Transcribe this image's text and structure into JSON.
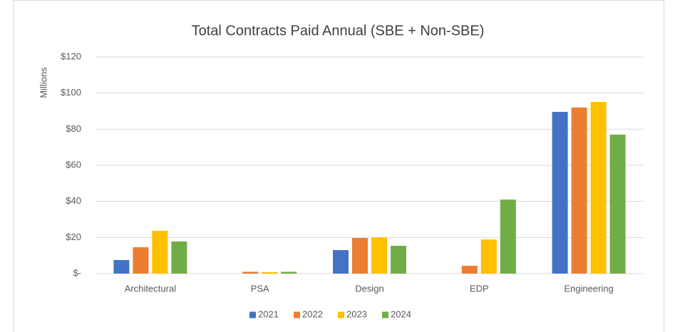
{
  "chart_data": {
    "type": "bar",
    "title": "Total  Contracts Paid Annual (SBE + Non-SBE)",
    "y_axis_label": "Millions",
    "categories": [
      "Architectural",
      "PSA",
      "Design",
      "EDP",
      "Engineering"
    ],
    "series": [
      {
        "name": "2021",
        "color": "#4472c4",
        "values": [
          7.5,
          0,
          13,
          0,
          89.6
        ]
      },
      {
        "name": "2022",
        "color": "#ed7d31",
        "values": [
          14.6,
          1,
          19.7,
          4.3,
          92
        ]
      },
      {
        "name": "2023",
        "color": "#ffc000",
        "values": [
          23.7,
          0.8,
          20.1,
          18.9,
          95.1
        ]
      },
      {
        "name": "2024",
        "color": "#70ad47",
        "values": [
          17.8,
          1,
          15.4,
          41,
          77
        ]
      }
    ],
    "ylim": [
      0,
      120
    ],
    "yticks": [
      {
        "value": 0,
        "label": "$-"
      },
      {
        "value": 20,
        "label": "$20"
      },
      {
        "value": 40,
        "label": "$40"
      },
      {
        "value": 60,
        "label": "$60"
      },
      {
        "value": 80,
        "label": "$80"
      },
      {
        "value": 100,
        "label": "$100"
      },
      {
        "value": 120,
        "label": "$120"
      }
    ],
    "grid": true,
    "legend": "bottom"
  }
}
